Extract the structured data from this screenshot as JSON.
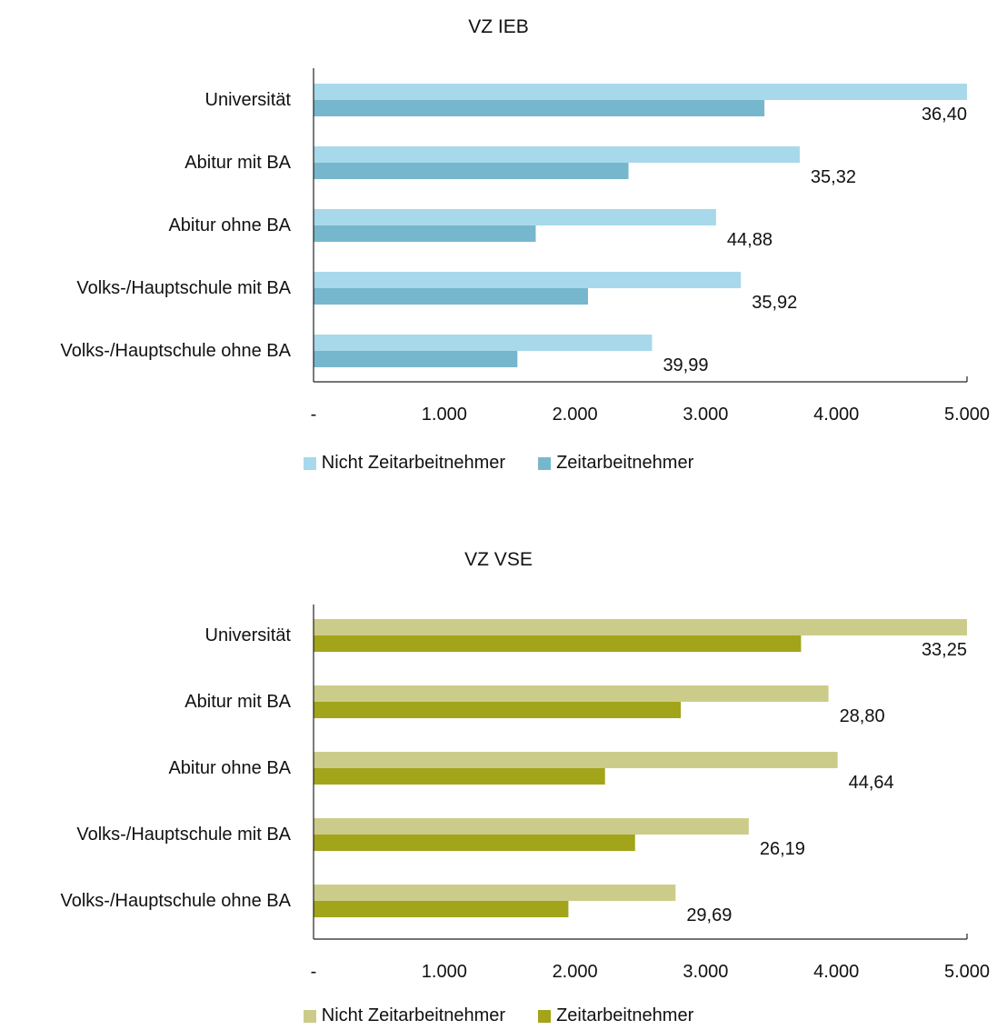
{
  "chart_data": [
    {
      "type": "bar",
      "orientation": "horizontal",
      "title": "VZ IEB",
      "categories": [
        "Universität",
        "Abitur mit BA",
        "Abitur ohne BA",
        "Volks-/Hauptschule mit BA",
        "Volks-/Hauptschule ohne BA"
      ],
      "series": [
        {
          "name": "Nicht Zeitarbeitnehmer",
          "color": "#a8d9ea",
          "values": [
            5000,
            3720,
            3080,
            3270,
            2590
          ]
        },
        {
          "name": "Zeitarbeitnehmer",
          "color": "#77b7ce",
          "values": [
            3450,
            2410,
            1700,
            2100,
            1560
          ]
        }
      ],
      "data_labels": [
        "36,40",
        "35,32",
        "44,88",
        "35,92",
        "39,99"
      ],
      "x_ticks": [
        "-",
        "1.000",
        "2.000",
        "3.000",
        "4.000",
        "5.000"
      ],
      "xlim": [
        0,
        5000
      ],
      "grid": false,
      "legend_position": "bottom"
    },
    {
      "type": "bar",
      "orientation": "horizontal",
      "title": "VZ VSE",
      "categories": [
        "Universität",
        "Abitur mit BA",
        "Abitur ohne BA",
        "Volks-/Hauptschule mit BA",
        "Volks-/Hauptschule ohne BA"
      ],
      "series": [
        {
          "name": "Nicht Zeitarbeitnehmer",
          "color": "#cccc8a",
          "values": [
            5000,
            3940,
            4010,
            3330,
            2770
          ]
        },
        {
          "name": "Zeitarbeitnehmer",
          "color": "#a2a41a",
          "values": [
            3730,
            2810,
            2230,
            2460,
            1950
          ]
        }
      ],
      "data_labels": [
        "33,25",
        "28,80",
        "44,64",
        "26,19",
        "29,69"
      ],
      "x_ticks": [
        "-",
        "1.000",
        "2.000",
        "3.000",
        "4.000",
        "5.000"
      ],
      "xlim": [
        0,
        5000
      ],
      "grid": false,
      "legend_position": "bottom"
    }
  ]
}
